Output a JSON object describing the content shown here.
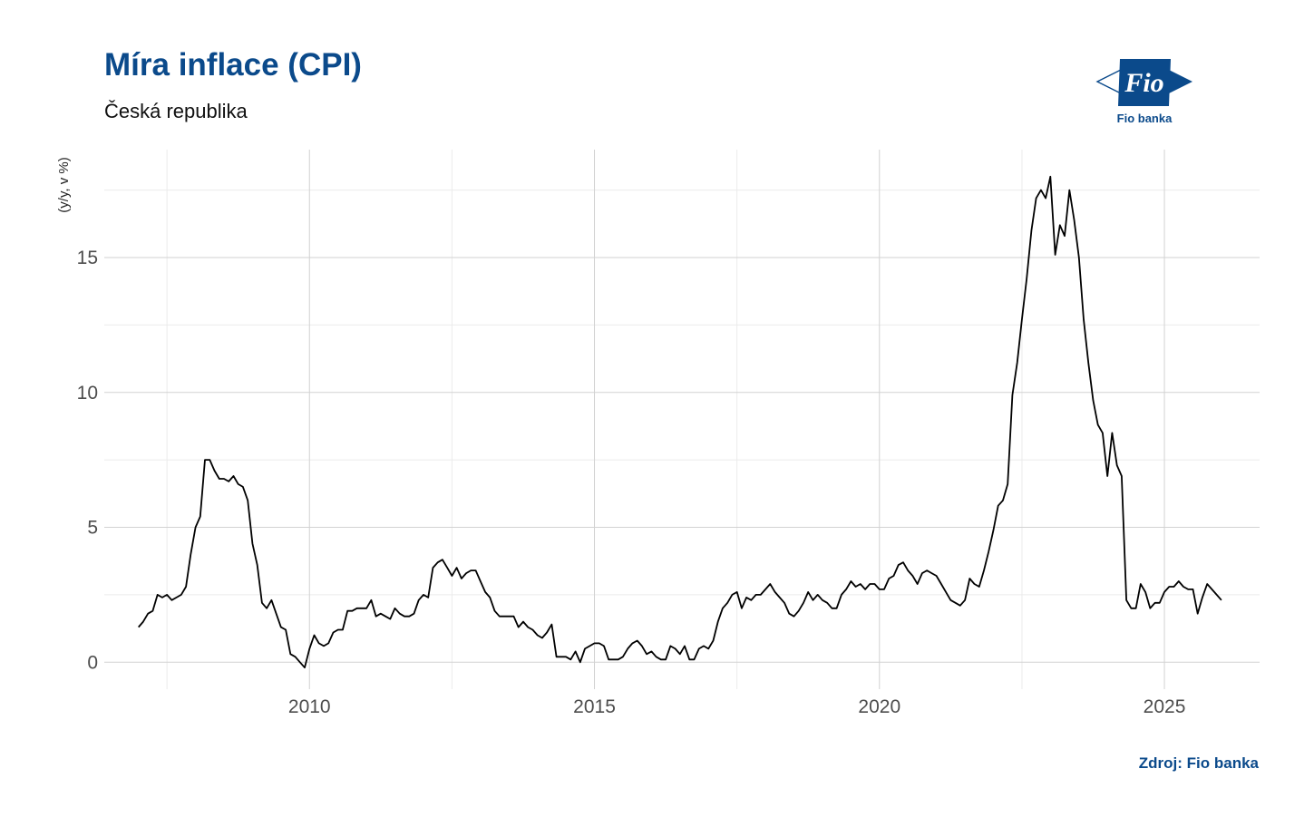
{
  "header": {
    "title": "Míra inflace (CPI)",
    "subtitle": "Česká republika"
  },
  "logo": {
    "text": "Fio",
    "caption": "Fio banka",
    "color": "#0b4a8b"
  },
  "footer": {
    "source": "Zdroj: Fio banka"
  },
  "chart_data": {
    "type": "line",
    "title": "Míra inflace (CPI)",
    "subtitle": "Česká republika",
    "xlabel": "",
    "ylabel": "(y/y, v %)",
    "xlim": [
      2006.4,
      2026.67
    ],
    "ylim": [
      -1.0,
      19.0
    ],
    "x_ticks": [
      2010,
      2015,
      2020,
      2025
    ],
    "y_ticks": [
      0,
      5,
      10,
      15
    ],
    "grid": true,
    "line_color": "#000000",
    "series": [
      {
        "start": 2007.0,
        "step_months": 1,
        "values": [
          1.3,
          1.5,
          1.8,
          1.9,
          2.5,
          2.4,
          2.5,
          2.3,
          2.4,
          2.5,
          2.8,
          4.0,
          5.0,
          5.4,
          7.5,
          7.5,
          7.1,
          6.8,
          6.8,
          6.7,
          6.9,
          6.6,
          6.5,
          6.0,
          4.4,
          3.6,
          2.2,
          2.0,
          2.3,
          1.8,
          1.3,
          1.2,
          0.3,
          0.2,
          0.0,
          -0.2,
          0.5,
          1.0,
          0.7,
          0.6,
          0.7,
          1.1,
          1.2,
          1.2,
          1.9,
          1.9,
          2.0,
          2.0,
          2.0,
          2.3,
          1.7,
          1.8,
          1.7,
          1.6,
          2.0,
          1.8,
          1.7,
          1.7,
          1.8,
          2.3,
          2.5,
          2.4,
          3.5,
          3.7,
          3.8,
          3.5,
          3.2,
          3.5,
          3.1,
          3.3,
          3.4,
          3.4,
          3.0,
          2.6,
          2.4,
          1.9,
          1.7,
          1.7,
          1.7,
          1.7,
          1.3,
          1.5,
          1.3,
          1.2,
          1.0,
          0.9,
          1.1,
          1.4,
          0.2,
          0.2,
          0.2,
          0.1,
          0.4,
          0.0,
          0.5,
          0.6,
          0.7,
          0.7,
          0.6,
          0.1,
          0.1,
          0.1,
          0.2,
          0.5,
          0.7,
          0.8,
          0.6,
          0.3,
          0.4,
          0.2,
          0.1,
          0.1,
          0.6,
          0.5,
          0.3,
          0.6,
          0.1,
          0.1,
          0.5,
          0.6,
          0.5,
          0.8,
          1.5,
          2.0,
          2.2,
          2.5,
          2.6,
          2.0,
          2.4,
          2.3,
          2.5,
          2.5,
          2.7,
          2.9,
          2.6,
          2.4,
          2.2,
          1.8,
          1.7,
          1.9,
          2.2,
          2.6,
          2.3,
          2.5,
          2.3,
          2.2,
          2.0,
          2.0,
          2.5,
          2.7,
          3.0,
          2.8,
          2.9,
          2.7,
          2.9,
          2.9,
          2.7,
          2.7,
          3.1,
          3.2,
          3.6,
          3.7,
          3.4,
          3.2,
          2.9,
          3.3,
          3.4,
          3.3,
          3.2,
          2.9,
          2.6,
          2.3,
          2.2,
          2.1,
          2.3,
          3.1,
          2.9,
          2.8,
          3.4,
          4.1,
          4.9,
          5.8,
          6.0,
          6.6,
          9.9,
          11.1,
          12.7,
          14.2,
          16.0,
          17.2,
          17.5,
          17.2,
          18.0,
          15.1,
          16.2,
          15.8,
          17.5,
          16.4,
          15.0,
          12.7,
          11.1,
          9.7,
          8.8,
          8.5,
          6.9,
          8.5,
          7.3,
          6.9,
          2.3,
          2.0,
          2.0,
          2.9,
          2.6,
          2.0,
          2.2,
          2.2,
          2.6,
          2.8,
          2.8,
          3.0,
          2.8,
          2.7,
          2.7,
          1.8,
          2.4,
          2.9,
          2.7,
          2.5,
          2.3
        ]
      }
    ]
  }
}
